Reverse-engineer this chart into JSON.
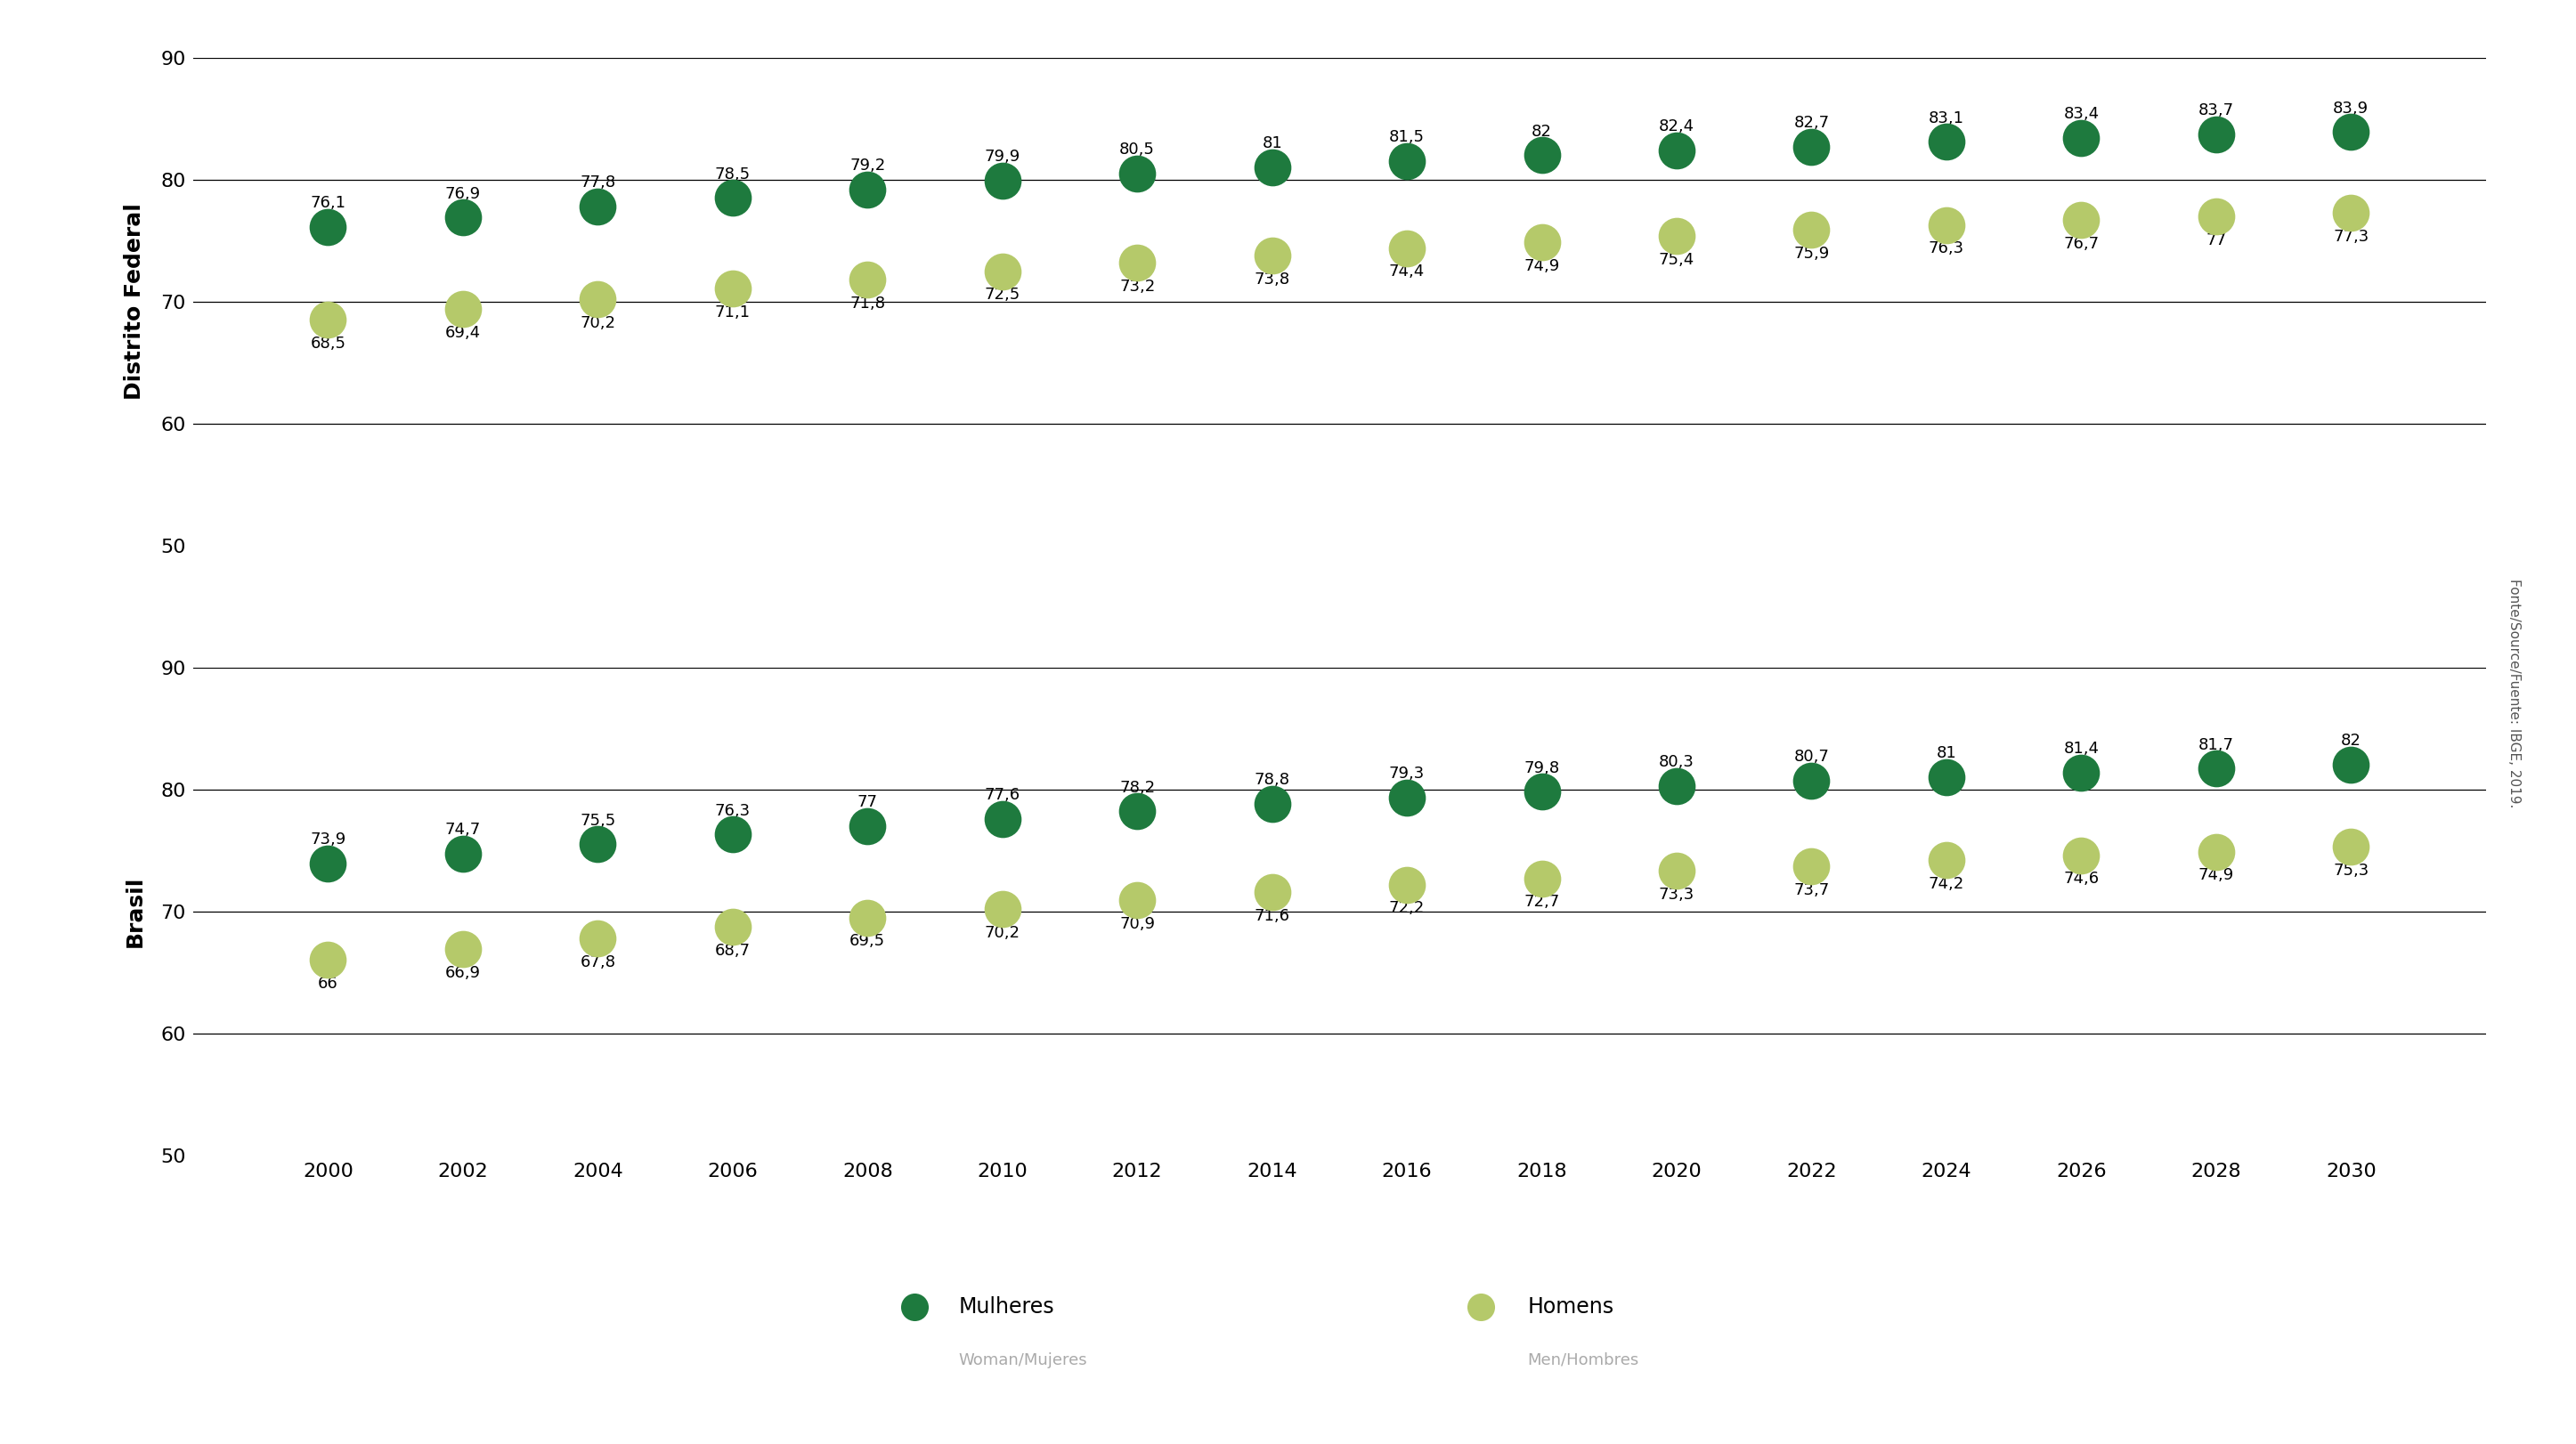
{
  "years": [
    2000,
    2002,
    2004,
    2006,
    2008,
    2010,
    2012,
    2014,
    2016,
    2018,
    2020,
    2022,
    2024,
    2026,
    2028,
    2030
  ],
  "df_women": [
    76.1,
    76.9,
    77.8,
    78.5,
    79.2,
    79.9,
    80.5,
    81.0,
    81.5,
    82.0,
    82.4,
    82.7,
    83.1,
    83.4,
    83.7,
    83.9
  ],
  "df_men": [
    68.5,
    69.4,
    70.2,
    71.1,
    71.8,
    72.5,
    73.2,
    73.8,
    74.4,
    74.9,
    75.4,
    75.9,
    76.3,
    76.7,
    77.0,
    77.3
  ],
  "br_women": [
    73.9,
    74.7,
    75.5,
    76.3,
    77.0,
    77.6,
    78.2,
    78.8,
    79.3,
    79.8,
    80.3,
    80.7,
    81.0,
    81.4,
    81.7,
    82.0
  ],
  "br_men": [
    66.0,
    66.9,
    67.8,
    68.7,
    69.5,
    70.2,
    70.9,
    71.6,
    72.2,
    72.7,
    73.3,
    73.7,
    74.2,
    74.6,
    74.9,
    75.3
  ],
  "color_women": "#1e7a3e",
  "color_men": "#b5c96a",
  "ylim": [
    50,
    90
  ],
  "yticks": [
    50,
    60,
    70,
    80,
    90
  ],
  "hlines": [
    60,
    70,
    80,
    90
  ],
  "bottom_hline": 50,
  "ylabel_df": "Distrito Federal",
  "ylabel_br": "Brasil",
  "legend_women_main": "Mulheres",
  "legend_women_sub": "Woman/Mujeres",
  "legend_men_main": "Homens",
  "legend_men_sub": "Men/Hombres",
  "source_text": "Fonte/Source/Fuente: IBGE, 2019.",
  "marker_size": 900,
  "label_fontsize": 13,
  "tick_fontsize": 16,
  "ylabel_fontsize": 18,
  "legend_main_fontsize": 17,
  "legend_sub_fontsize": 13,
  "source_fontsize": 11
}
